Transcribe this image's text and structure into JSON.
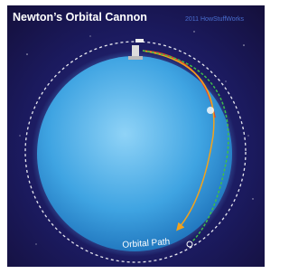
{
  "header": {
    "title": "Newton’s Orbital Cannon",
    "credit": "2011 HowStuffWorks"
  },
  "labels": {
    "orbit": "Orbital Path"
  }
}
